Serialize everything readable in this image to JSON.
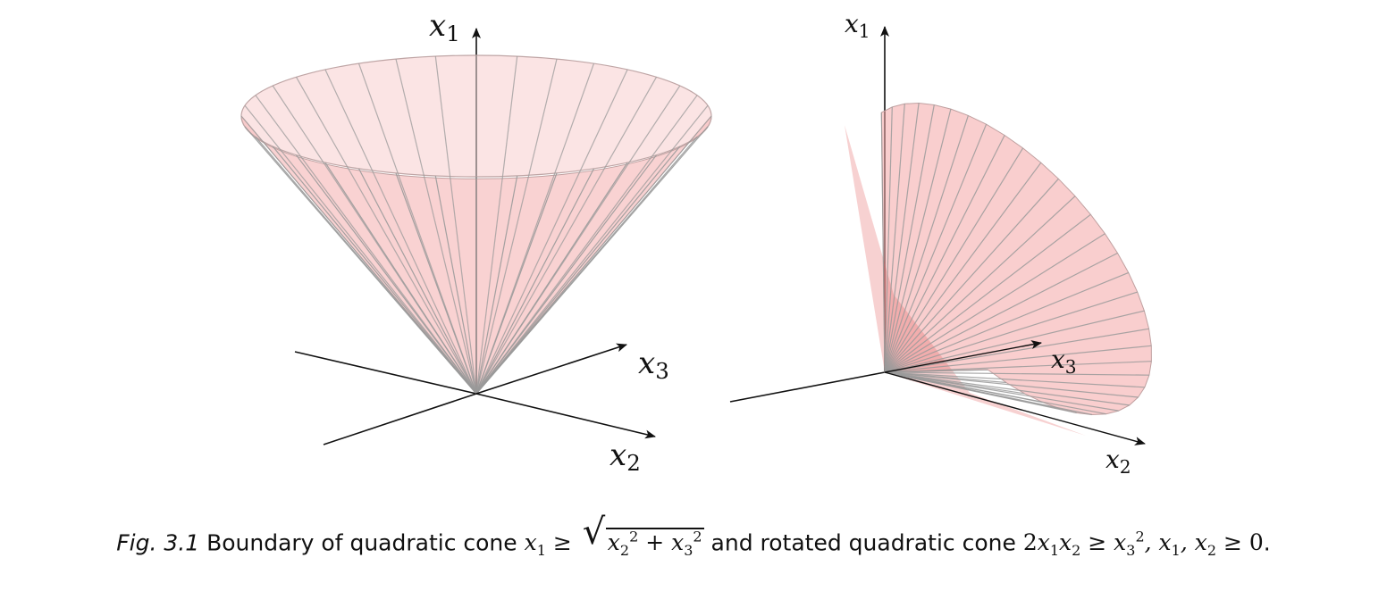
{
  "figure": {
    "left_cone": {
      "axis_labels": {
        "x1": "x1",
        "x2": "x2",
        "x3": "x3"
      }
    },
    "right_cone": {
      "axis_labels": {
        "x1": "x1",
        "x2": "x2",
        "x3": "x3"
      }
    },
    "colors": {
      "cone_fill": "#f4a6a6",
      "cone_edge": "#9a9a9a",
      "axis": "#111111"
    }
  },
  "caption": {
    "fig_label": "Fig. 3.1",
    "text_1": "Boundary of quadratic cone",
    "text_2": "and rotated quadratic cone",
    "end": "."
  }
}
